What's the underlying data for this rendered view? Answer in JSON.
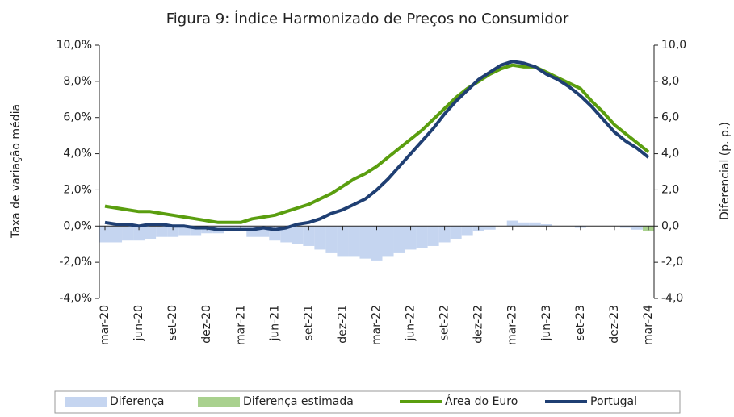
{
  "chart_data": {
    "type": "bar-line",
    "title": "Figura 9: Índice Harmonizado de Preços no Consumidor",
    "y_label": "Taxa de variação média",
    "y2_label": "Diferencial (p. p.)",
    "categories": [
      "mar-20",
      null,
      null,
      "jun-20",
      null,
      null,
      "set-20",
      null,
      null,
      "dez-20",
      null,
      null,
      "mar-21",
      null,
      null,
      "jun-21",
      null,
      null,
      "set-21",
      null,
      null,
      "dez-21",
      null,
      null,
      "mar-22",
      null,
      null,
      "jun-22",
      null,
      null,
      "set-22",
      null,
      null,
      "dez-22",
      null,
      null,
      "mar-23",
      null,
      null,
      "jun-23",
      null,
      null,
      "set-23",
      null,
      null,
      "dez-23",
      null,
      null,
      "mar-24"
    ],
    "series": [
      {
        "name": "Diferença",
        "kind": "bar",
        "axis": "y2",
        "color": "#c5d5f0",
        "values": [
          -0.9,
          -0.9,
          -0.8,
          -0.8,
          -0.7,
          -0.6,
          -0.6,
          -0.5,
          -0.5,
          -0.4,
          -0.4,
          -0.3,
          -0.2,
          -0.6,
          -0.6,
          -0.8,
          -0.9,
          -1.0,
          -1.1,
          -1.3,
          -1.5,
          -1.7,
          -1.7,
          -1.8,
          -1.9,
          -1.7,
          -1.5,
          -1.3,
          -1.2,
          -1.1,
          -0.9,
          -0.7,
          -0.5,
          -0.3,
          -0.2,
          0.0,
          0.3,
          0.2,
          0.2,
          0.1,
          0.0,
          0.0,
          -0.1,
          0.0,
          0.0,
          0.0,
          -0.1,
          -0.2,
          null
        ]
      },
      {
        "name": "Diferença estimada",
        "kind": "bar",
        "axis": "y2",
        "color": "#a9d18e",
        "values": [
          null,
          null,
          null,
          null,
          null,
          null,
          null,
          null,
          null,
          null,
          null,
          null,
          null,
          null,
          null,
          null,
          null,
          null,
          null,
          null,
          null,
          null,
          null,
          null,
          null,
          null,
          null,
          null,
          null,
          null,
          null,
          null,
          null,
          null,
          null,
          null,
          null,
          null,
          null,
          null,
          null,
          null,
          null,
          null,
          null,
          null,
          null,
          null,
          -0.3
        ]
      },
      {
        "name": "Área do Euro",
        "kind": "line",
        "color": "#5a9e0f",
        "values": [
          1.1,
          1.0,
          0.9,
          0.8,
          0.8,
          0.7,
          0.6,
          0.5,
          0.4,
          0.3,
          0.2,
          0.2,
          0.2,
          0.4,
          0.5,
          0.6,
          0.8,
          1.0,
          1.2,
          1.5,
          1.8,
          2.2,
          2.6,
          2.9,
          3.3,
          3.8,
          4.3,
          4.8,
          5.3,
          5.9,
          6.5,
          7.1,
          7.6,
          8.0,
          8.4,
          8.7,
          8.9,
          8.8,
          8.8,
          8.5,
          8.2,
          7.9,
          7.6,
          6.9,
          6.3,
          5.6,
          5.1,
          4.6,
          4.1
        ]
      },
      {
        "name": "Portugal",
        "kind": "line",
        "color": "#1f3f73",
        "values": [
          0.2,
          0.1,
          0.1,
          0.0,
          0.1,
          0.1,
          0.0,
          0.0,
          -0.1,
          -0.1,
          -0.2,
          -0.2,
          -0.2,
          -0.2,
          -0.1,
          -0.2,
          -0.1,
          0.1,
          0.2,
          0.4,
          0.7,
          0.9,
          1.2,
          1.5,
          2.0,
          2.6,
          3.3,
          4.0,
          4.7,
          5.4,
          6.2,
          6.9,
          7.5,
          8.1,
          8.5,
          8.9,
          9.1,
          9.0,
          8.8,
          8.4,
          8.1,
          7.7,
          7.2,
          6.6,
          5.9,
          5.2,
          4.7,
          4.3,
          3.8
        ]
      }
    ],
    "ylim": [
      -4,
      10
    ],
    "yticks": [
      {
        "value": -4,
        "label": "-4,0%"
      },
      {
        "value": -2,
        "label": "-2,0%"
      },
      {
        "value": 0,
        "label": "0,0%"
      },
      {
        "value": 2,
        "label": "2,0%"
      },
      {
        "value": 4,
        "label": "4,0%"
      },
      {
        "value": 6,
        "label": "6,0%"
      },
      {
        "value": 8,
        "label": "8,0%"
      },
      {
        "value": 10,
        "label": "10,0%"
      }
    ],
    "y2lim": [
      -4,
      10
    ],
    "y2ticks": [
      {
        "value": -4,
        "label": "-4,0"
      },
      {
        "value": -2,
        "label": "-2,0"
      },
      {
        "value": 0,
        "label": "0,0"
      },
      {
        "value": 2,
        "label": "2,0"
      },
      {
        "value": 4,
        "label": "4,0"
      },
      {
        "value": 6,
        "label": "6,0"
      },
      {
        "value": 8,
        "label": "8,0"
      },
      {
        "value": 10,
        "label": "10,0"
      }
    ],
    "legend": "bottom"
  }
}
